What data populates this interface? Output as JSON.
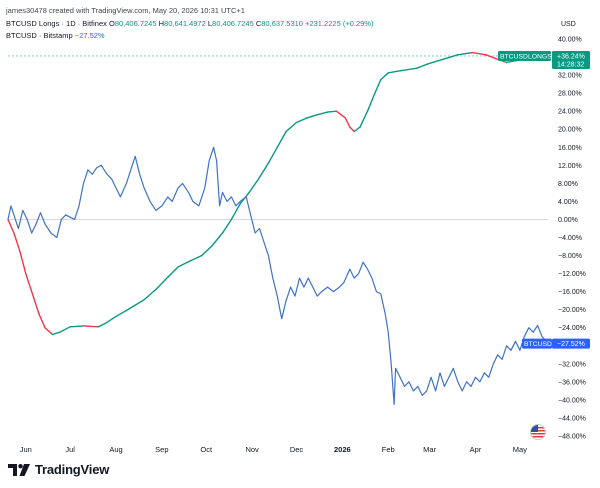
{
  "header": {
    "line1": "james30478 created with TradingView.com, May 20, 2026 10:31 UTC+1",
    "series1_name": "BTCUSD Longs · 1D · Bitfinex",
    "o_label": "O",
    "o_value": "80,406.7245",
    "h_label": "H",
    "h_value": "80,641.4972",
    "l_label": "L",
    "l_value": "80,406.7245",
    "c_label": "C",
    "c_value": "80,637.5310",
    "change": "+231.2225 (+0.29%)",
    "series2_name": "BTCUSD · Bitstamp",
    "series2_change": "−27.52%"
  },
  "axis_unit": "USD",
  "badges": {
    "longs_symbol": "BTCUSDLONGS",
    "longs_value": "+36.24%",
    "longs_countdown": "14:28:32",
    "btc_symbol": "BTCUSD",
    "btc_value": "−27.52%"
  },
  "brand": "TradingView",
  "colors": {
    "btc": "#3f72c6",
    "longs_up": "#089981",
    "longs_down": "#f23645",
    "longs_badge": "#089981",
    "btc_badge": "#2962ff"
  },
  "chart_data": {
    "type": "line",
    "ylim": [
      -50,
      42
    ],
    "y_ticks": [
      40,
      36,
      32,
      28,
      24,
      20,
      16,
      12,
      8,
      4,
      0,
      -4,
      -8,
      -12,
      -16,
      -20,
      -24,
      -28,
      -32,
      -36,
      -40,
      -44,
      -48
    ],
    "y_tick_labels": [
      "40.00%",
      "36.00%",
      "32.00%",
      "28.00%",
      "24.00%",
      "20.00%",
      "16.00%",
      "12.00%",
      "8.00%",
      "4.00%",
      "0.00%",
      "−4.00%",
      "−8.00%",
      "−12.00%",
      "−16.00%",
      "−20.00%",
      "−24.00%",
      "−28.00%",
      "−32.00%",
      "−36.00%",
      "−40.00%",
      "−44.00%",
      "−48.00%"
    ],
    "x_ticks": [
      "2025-06-01",
      "2025-07-01",
      "2025-08-01",
      "2025-09-01",
      "2025-10-01",
      "2025-11-01",
      "2025-12-01",
      "2026-01-01",
      "2026-02-01",
      "2026-03-01",
      "2026-04-01",
      "2026-05-01"
    ],
    "x_tick_labels": [
      "Jun",
      "Jul",
      "Aug",
      "Sep",
      "Oct",
      "Nov",
      "Dec",
      "2026",
      "Feb",
      "Mar",
      "Apr",
      "May"
    ],
    "x_range": [
      "2025-05-20",
      "2026-05-20"
    ],
    "grid": false,
    "series": [
      {
        "name": "BTCUSD Longs",
        "values": [
          [
            "2025-05-20",
            0
          ],
          [
            "2025-05-24",
            -3
          ],
          [
            "2025-05-28",
            -7
          ],
          [
            "2025-06-01",
            -12
          ],
          [
            "2025-06-06",
            -17
          ],
          [
            "2025-06-10",
            -21
          ],
          [
            "2025-06-14",
            -24
          ],
          [
            "2025-06-19",
            -25.5
          ],
          [
            "2025-06-24",
            -25
          ],
          [
            "2025-07-01",
            -23.8
          ],
          [
            "2025-07-10",
            -23.6
          ],
          [
            "2025-07-20",
            -23.8
          ],
          [
            "2025-07-25",
            -23
          ],
          [
            "2025-08-01",
            -21.5
          ],
          [
            "2025-08-10",
            -19.8
          ],
          [
            "2025-08-20",
            -17.8
          ],
          [
            "2025-08-28",
            -15.5
          ],
          [
            "2025-09-05",
            -12.8
          ],
          [
            "2025-09-12",
            -10.5
          ],
          [
            "2025-09-20",
            -9.2
          ],
          [
            "2025-09-28",
            -8
          ],
          [
            "2025-10-05",
            -5.8
          ],
          [
            "2025-10-12",
            -3
          ],
          [
            "2025-10-18",
            0
          ],
          [
            "2025-10-24",
            3.5
          ],
          [
            "2025-10-30",
            6
          ],
          [
            "2025-11-05",
            8.8
          ],
          [
            "2025-11-12",
            12.5
          ],
          [
            "2025-11-18",
            16
          ],
          [
            "2025-11-24",
            19.5
          ],
          [
            "2025-12-01",
            21.5
          ],
          [
            "2025-12-08",
            22.5
          ],
          [
            "2025-12-15",
            23.2
          ],
          [
            "2025-12-22",
            23.8
          ],
          [
            "2025-12-28",
            24
          ],
          [
            "2026-01-03",
            22.5
          ],
          [
            "2026-01-06",
            20.5
          ],
          [
            "2026-01-09",
            19.5
          ],
          [
            "2026-01-13",
            20.5
          ],
          [
            "2026-01-18",
            24
          ],
          [
            "2026-01-23",
            28
          ],
          [
            "2026-01-27",
            31
          ],
          [
            "2026-02-01",
            32.5
          ],
          [
            "2026-02-10",
            33
          ],
          [
            "2026-02-20",
            33.5
          ],
          [
            "2026-02-28",
            34.5
          ],
          [
            "2026-03-10",
            35.5
          ],
          [
            "2026-03-20",
            36.5
          ],
          [
            "2026-03-30",
            37
          ],
          [
            "2026-04-08",
            36.5
          ],
          [
            "2026-04-16",
            35.5
          ],
          [
            "2026-04-22",
            34.8
          ],
          [
            "2026-04-28",
            35.2
          ],
          [
            "2026-05-05",
            35.5
          ],
          [
            "2026-05-12",
            35.8
          ],
          [
            "2026-05-20",
            36.24
          ]
        ]
      },
      {
        "name": "BTCUSD",
        "values": [
          [
            "2025-05-20",
            0
          ],
          [
            "2025-05-22",
            3
          ],
          [
            "2025-05-24",
            1
          ],
          [
            "2025-05-27",
            -2
          ],
          [
            "2025-05-30",
            2
          ],
          [
            "2025-06-02",
            0
          ],
          [
            "2025-06-05",
            -3
          ],
          [
            "2025-06-08",
            -1
          ],
          [
            "2025-06-11",
            1.5
          ],
          [
            "2025-06-14",
            -1
          ],
          [
            "2025-06-18",
            -3
          ],
          [
            "2025-06-22",
            -4
          ],
          [
            "2025-06-25",
            0
          ],
          [
            "2025-06-28",
            1
          ],
          [
            "2025-07-01",
            0.5
          ],
          [
            "2025-07-04",
            0
          ],
          [
            "2025-07-07",
            3
          ],
          [
            "2025-07-10",
            8
          ],
          [
            "2025-07-13",
            11
          ],
          [
            "2025-07-16",
            10
          ],
          [
            "2025-07-19",
            11.5
          ],
          [
            "2025-07-22",
            12
          ],
          [
            "2025-07-26",
            10
          ],
          [
            "2025-07-29",
            9
          ],
          [
            "2025-08-01",
            7
          ],
          [
            "2025-08-04",
            5
          ],
          [
            "2025-08-08",
            8
          ],
          [
            "2025-08-11",
            11
          ],
          [
            "2025-08-14",
            14
          ],
          [
            "2025-08-17",
            10
          ],
          [
            "2025-08-20",
            7
          ],
          [
            "2025-08-24",
            4
          ],
          [
            "2025-08-28",
            2
          ],
          [
            "2025-09-01",
            3
          ],
          [
            "2025-09-05",
            5
          ],
          [
            "2025-09-08",
            4
          ],
          [
            "2025-09-12",
            7
          ],
          [
            "2025-09-15",
            8
          ],
          [
            "2025-09-19",
            6
          ],
          [
            "2025-09-22",
            4
          ],
          [
            "2025-09-26",
            3
          ],
          [
            "2025-09-30",
            7
          ],
          [
            "2025-10-03",
            13
          ],
          [
            "2025-10-06",
            16
          ],
          [
            "2025-10-08",
            13
          ],
          [
            "2025-10-10",
            3
          ],
          [
            "2025-10-12",
            6
          ],
          [
            "2025-10-15",
            4
          ],
          [
            "2025-10-18",
            5
          ],
          [
            "2025-10-21",
            3
          ],
          [
            "2025-10-24",
            4
          ],
          [
            "2025-10-28",
            5
          ],
          [
            "2025-10-31",
            1
          ],
          [
            "2025-11-03",
            -3
          ],
          [
            "2025-11-06",
            -2
          ],
          [
            "2025-11-09",
            -5
          ],
          [
            "2025-11-12",
            -8
          ],
          [
            "2025-11-15",
            -13
          ],
          [
            "2025-11-18",
            -17
          ],
          [
            "2025-11-21",
            -22
          ],
          [
            "2025-11-24",
            -18
          ],
          [
            "2025-11-27",
            -15
          ],
          [
            "2025-11-30",
            -17
          ],
          [
            "2025-12-03",
            -13
          ],
          [
            "2025-12-06",
            -15
          ],
          [
            "2025-12-09",
            -13
          ],
          [
            "2025-12-12",
            -15
          ],
          [
            "2025-12-15",
            -17
          ],
          [
            "2025-12-18",
            -16
          ],
          [
            "2025-12-22",
            -15
          ],
          [
            "2025-12-26",
            -16
          ],
          [
            "2025-12-30",
            -15
          ],
          [
            "2026-01-02",
            -14
          ],
          [
            "2026-01-06",
            -11
          ],
          [
            "2026-01-09",
            -13
          ],
          [
            "2026-01-12",
            -12
          ],
          [
            "2026-01-15",
            -9.5
          ],
          [
            "2026-01-18",
            -11
          ],
          [
            "2026-01-21",
            -13
          ],
          [
            "2026-01-24",
            -16
          ],
          [
            "2026-01-27",
            -16.5
          ],
          [
            "2026-01-30",
            -21
          ],
          [
            "2026-02-01",
            -25
          ],
          [
            "2026-02-03",
            -32
          ],
          [
            "2026-02-05",
            -41
          ],
          [
            "2026-02-06",
            -33
          ],
          [
            "2026-02-09",
            -35
          ],
          [
            "2026-02-12",
            -37
          ],
          [
            "2026-02-15",
            -36
          ],
          [
            "2026-02-18",
            -38
          ],
          [
            "2026-02-21",
            -37
          ],
          [
            "2026-02-24",
            -39
          ],
          [
            "2026-02-27",
            -38
          ],
          [
            "2026-03-02",
            -35
          ],
          [
            "2026-03-05",
            -38
          ],
          [
            "2026-03-08",
            -34
          ],
          [
            "2026-03-11",
            -37
          ],
          [
            "2026-03-14",
            -35
          ],
          [
            "2026-03-17",
            -33
          ],
          [
            "2026-03-20",
            -36
          ],
          [
            "2026-03-23",
            -38
          ],
          [
            "2026-03-26",
            -36
          ],
          [
            "2026-03-29",
            -37
          ],
          [
            "2026-04-01",
            -35
          ],
          [
            "2026-04-04",
            -36
          ],
          [
            "2026-04-07",
            -34
          ],
          [
            "2026-04-10",
            -35
          ],
          [
            "2026-04-13",
            -32
          ],
          [
            "2026-04-16",
            -30
          ],
          [
            "2026-04-19",
            -31
          ],
          [
            "2026-04-22",
            -28
          ],
          [
            "2026-04-25",
            -29
          ],
          [
            "2026-04-28",
            -27
          ],
          [
            "2026-05-01",
            -29
          ],
          [
            "2026-05-04",
            -26
          ],
          [
            "2026-05-07",
            -24
          ],
          [
            "2026-05-10",
            -25
          ],
          [
            "2026-05-13",
            -23.5
          ],
          [
            "2026-05-16",
            -26
          ],
          [
            "2026-05-20",
            -27.52
          ]
        ]
      }
    ]
  }
}
